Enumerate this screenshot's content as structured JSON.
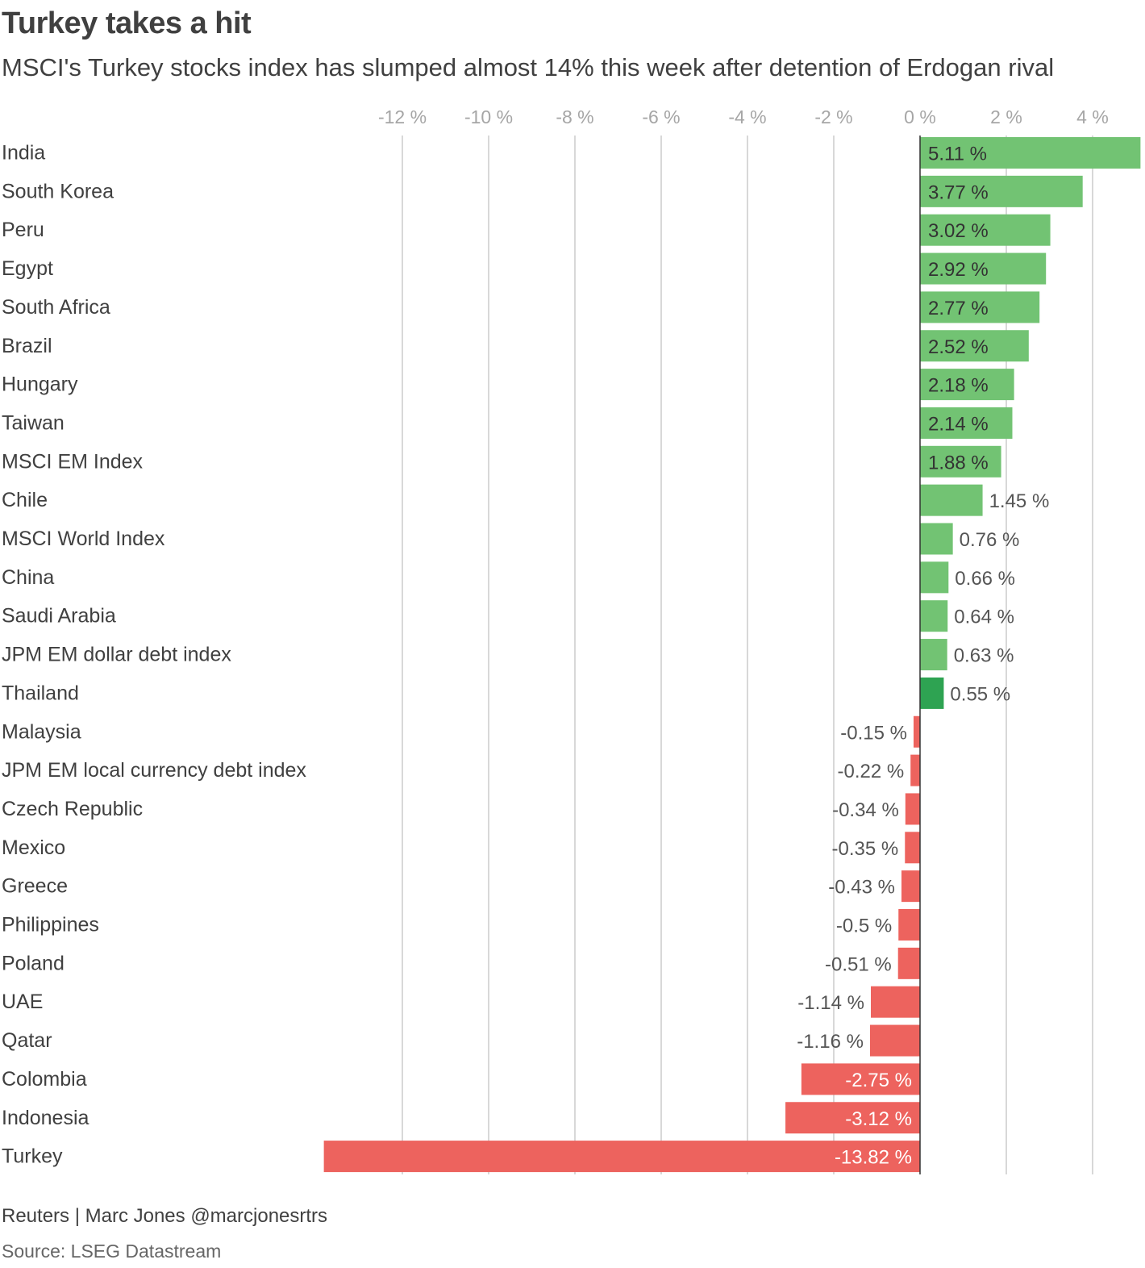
{
  "title": "Turkey takes a hit",
  "subtitle": "MSCI's Turkey stocks index has slumped almost 14% this week after detention of Erdogan rival",
  "footer": {
    "credit": "Reuters | Marc Jones @marcjonesrtrs",
    "source": "Source: LSEG Datastream"
  },
  "colors": {
    "positive": "#72c373",
    "highlight": "#2ea352",
    "negative": "#ed635e",
    "grid": "#cccccc",
    "axis_text": "#a6a6a6",
    "label_text": "#404040"
  },
  "chart_data": {
    "type": "bar",
    "orientation": "horizontal",
    "title": "Turkey takes a hit",
    "xlim": [
      -13.82,
      5.11
    ],
    "x_ticks": [
      -12,
      -10,
      -8,
      -6,
      -4,
      -2,
      0,
      2,
      4
    ],
    "x_tick_labels": [
      "-12 %",
      "-10 %",
      "-8 %",
      "-6 %",
      "-4 %",
      "-2 %",
      "0 %",
      "2 %",
      "4 %"
    ],
    "grid": true,
    "categories": [
      "India",
      "South Korea",
      "Peru",
      "Egypt",
      "South Africa",
      "Brazil",
      "Hungary",
      "Taiwan",
      "MSCI EM Index",
      "Chile",
      "MSCI World Index",
      "China",
      "Saudi Arabia",
      "JPM EM dollar debt index",
      "Thailand",
      "Malaysia",
      "JPM EM local currency debt index",
      "Czech Republic",
      "Mexico",
      "Greece",
      "Philippines",
      "Poland",
      "UAE",
      "Qatar",
      "Colombia",
      "Indonesia",
      "Turkey"
    ],
    "values": [
      5.11,
      3.77,
      3.02,
      2.92,
      2.77,
      2.52,
      2.18,
      2.14,
      1.88,
      1.45,
      0.76,
      0.66,
      0.64,
      0.63,
      0.55,
      -0.15,
      -0.22,
      -0.34,
      -0.35,
      -0.43,
      -0.5,
      -0.51,
      -1.14,
      -1.16,
      -2.75,
      -3.12,
      -13.82
    ],
    "value_labels": [
      "5.11 %",
      "3.77 %",
      "3.02 %",
      "2.92 %",
      "2.77 %",
      "2.52 %",
      "2.18 %",
      "2.14 %",
      "1.88 %",
      "1.45 %",
      "0.76 %",
      "0.66 %",
      "0.64 %",
      "0.63 %",
      "0.55 %",
      "-0.15 %",
      "-0.22 %",
      "-0.34 %",
      "-0.35 %",
      "-0.43 %",
      "-0.5 %",
      "-0.51 %",
      "-1.14 %",
      "-1.16 %",
      "-2.75 %",
      "-3.12 %",
      "-13.82 %"
    ],
    "highlighted_category": "Thailand"
  }
}
